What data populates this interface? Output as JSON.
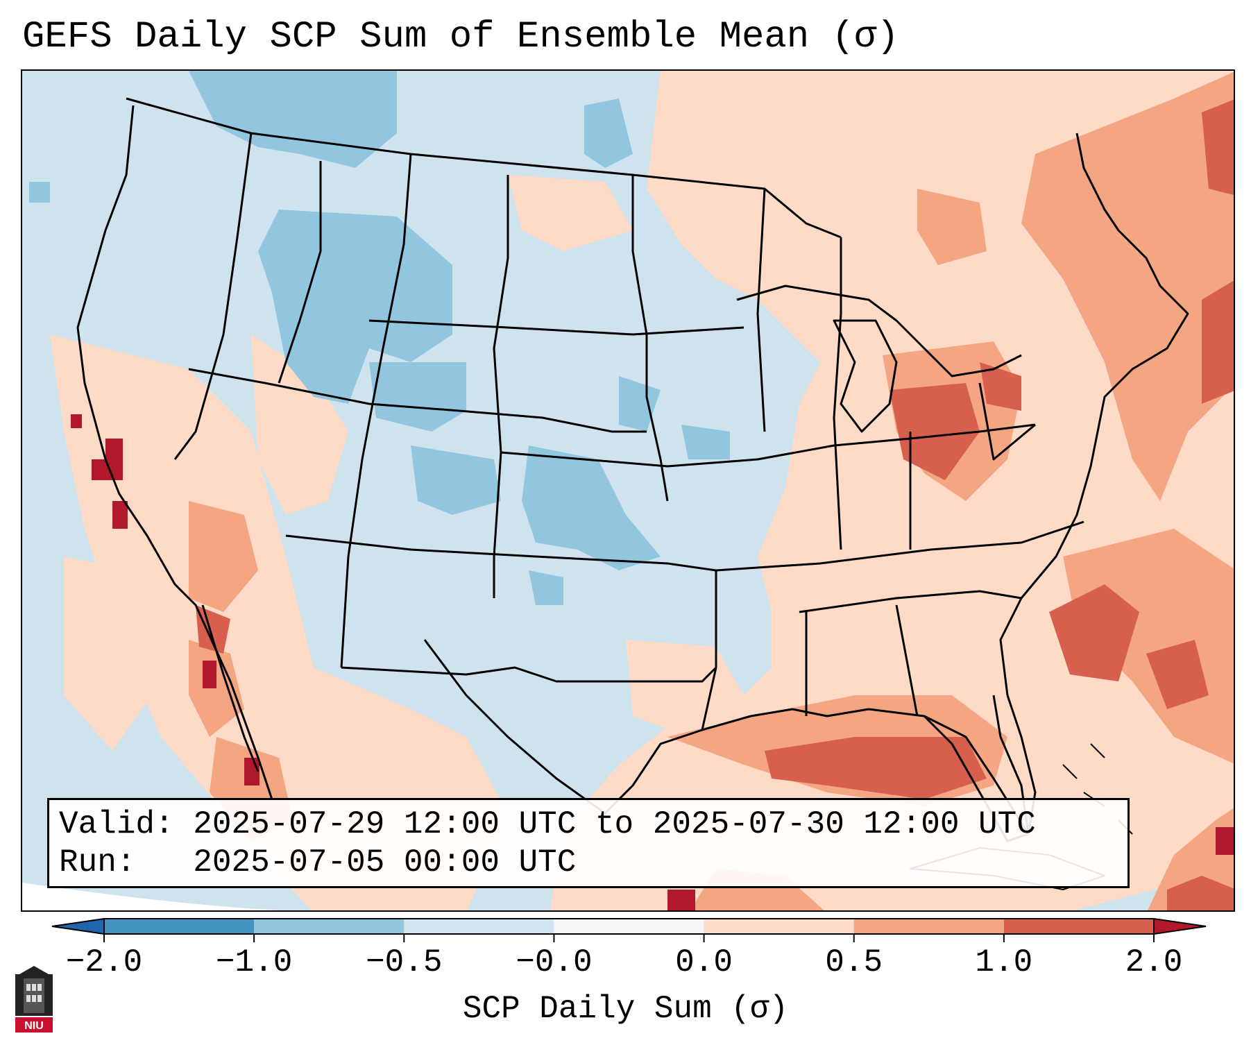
{
  "title": "GEFS Daily SCP Sum of Ensemble Mean (σ)",
  "map": {
    "region": "Continental United States",
    "variable": "SCP Daily Sum anomaly",
    "colors": {
      "ocean_base": "#cfe3ef",
      "neg_strong": "#4393c3",
      "neg_moderate": "#92c5de",
      "neg_weak": "#d1e5f0",
      "near_zero": "#f7f7f7",
      "pos_weak": "#fddbc7",
      "pos_moderate": "#f4a582",
      "pos_strong": "#d6604d",
      "pos_extreme": "#b2182b",
      "boundary": "#000000"
    }
  },
  "info": {
    "valid_label": "Valid:",
    "valid_value": "2025-07-29 12:00 UTC to 2025-07-30 12:00 UTC",
    "run_label": "Run:",
    "run_value": "2025-07-05 00:00 UTC"
  },
  "colorbar": {
    "label": "SCP Daily Sum (σ)",
    "ticks": [
      "−2.0",
      "−1.0",
      "−0.5",
      "−0.0",
      "0.0",
      "0.5",
      "1.0",
      "2.0"
    ],
    "bins": [
      "#2166ac",
      "#4393c3",
      "#92c5de",
      "#d1e5f0",
      "#f7f7f7",
      "#fddbc7",
      "#f4a582",
      "#d6604d",
      "#b2182b"
    ]
  },
  "logo": {
    "text": "NIU",
    "icon": "niu-logo-icon",
    "color": "#c8102e"
  }
}
